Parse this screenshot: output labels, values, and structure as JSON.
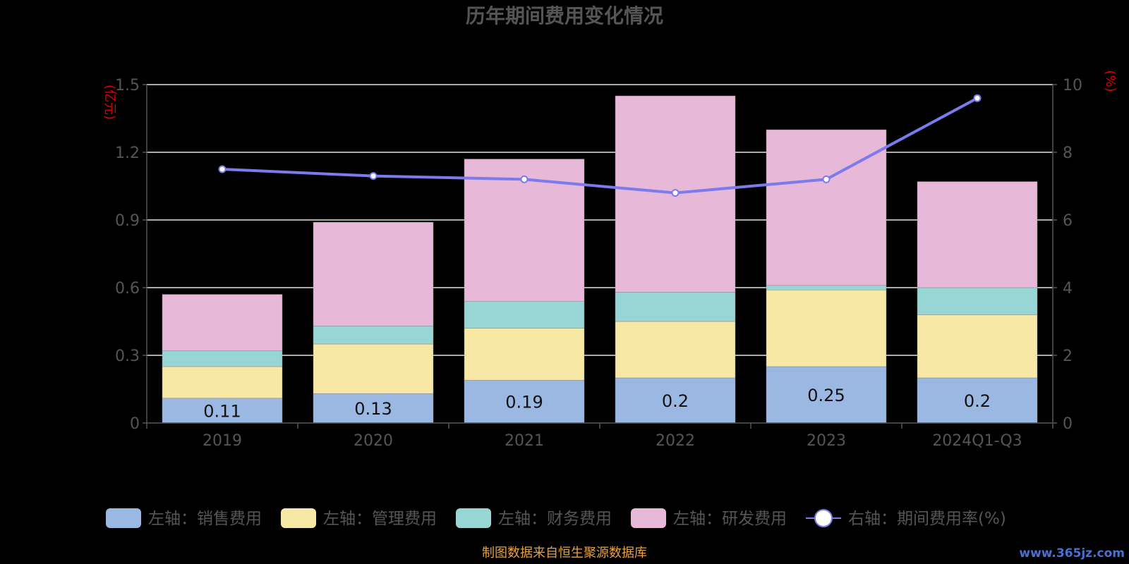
{
  "chart_data": {
    "type": "bar",
    "title": "历年期间费用变化情况",
    "ylabel_left": "(亿元)",
    "ylabel_right": "(%)",
    "categories": [
      "2019",
      "2020",
      "2021",
      "2022",
      "2023",
      "2024Q1-Q3"
    ],
    "ylim_left": [
      0,
      1.5
    ],
    "yticks_left": [
      "0",
      "0.3",
      "0.6",
      "0.9",
      "1.2",
      "1.5"
    ],
    "ylim_right": [
      0,
      10
    ],
    "yticks_right": [
      "0",
      "2",
      "4",
      "6",
      "8",
      "10"
    ],
    "stacked": true,
    "grid": true,
    "legend_position": "bottom",
    "series": [
      {
        "name": "左轴：销售费用",
        "axis": "left",
        "color": "#9bb8e3",
        "values": [
          0.11,
          0.13,
          0.19,
          0.2,
          0.25,
          0.2
        ],
        "show_labels": true
      },
      {
        "name": "左轴：管理费用",
        "axis": "left",
        "color": "#f8e8a6",
        "values": [
          0.14,
          0.22,
          0.23,
          0.25,
          0.34,
          0.28
        ]
      },
      {
        "name": "左轴：财务费用",
        "axis": "left",
        "color": "#98d6d6",
        "values": [
          0.07,
          0.08,
          0.12,
          0.13,
          0.02,
          0.12
        ]
      },
      {
        "name": "左轴：研发费用",
        "axis": "left",
        "color": "#e8b8d9",
        "values": [
          0.25,
          0.46,
          0.63,
          0.87,
          0.69,
          0.47
        ]
      },
      {
        "name": "右轴：期间费用率(%)",
        "axis": "right",
        "type": "line",
        "color": "#7b7bee",
        "values": [
          7.5,
          7.3,
          7.2,
          6.8,
          7.2,
          9.6
        ]
      }
    ],
    "source_note": "制图数据来自恒生聚源数据库",
    "watermark": "www.365jz.com"
  }
}
